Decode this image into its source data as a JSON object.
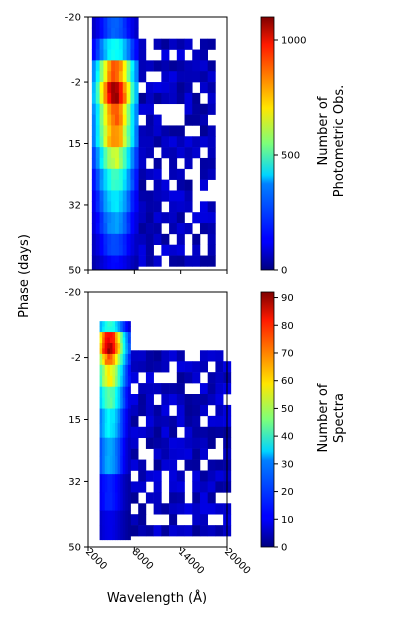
{
  "chart_data": [
    {
      "type": "heatmap",
      "title": "",
      "xlabel": "",
      "ylabel": "Phase (days)",
      "xlim": [
        2000,
        20000
      ],
      "ylim": [
        -20,
        50
      ],
      "y_inverted": true,
      "xticks": [
        2000,
        8000,
        14000,
        20000
      ],
      "xtick_labels_shown": false,
      "yticks": [
        -20,
        -2,
        15,
        32,
        50
      ],
      "ytick_labels": [
        "-20",
        "-2",
        "15",
        "32",
        "50"
      ],
      "colormap": "jet",
      "colorbar": {
        "label": "Number of\nPhotometric Obs.",
        "range": [
          0,
          1100
        ],
        "ticks": [
          0,
          500,
          1000
        ],
        "tick_labels": [
          "0",
          "500",
          "1000"
        ]
      },
      "description_of_distribution": "Dense band between ~2500 and ~8500 A peaking near 5500 A at phase ~-2 days (~1100 obs); sparse low-count cells out to ~18500 A between phases ~-14 and ~47 days.",
      "cells": [
        {
          "x0": 2500,
          "x1": 8500,
          "y0": -20,
          "y1": -14,
          "peak": 250
        },
        {
          "x0": 2500,
          "x1": 8500,
          "y0": -14,
          "y1": -8,
          "peak": 450
        },
        {
          "x0": 2500,
          "x1": 8500,
          "y0": -8,
          "y1": -2,
          "peak": 900
        },
        {
          "x0": 2500,
          "x1": 8500,
          "y0": -2,
          "y1": 4,
          "peak": 1100
        },
        {
          "x0": 2500,
          "x1": 8500,
          "y0": 4,
          "y1": 10,
          "peak": 900
        },
        {
          "x0": 2500,
          "x1": 8500,
          "y0": 10,
          "y1": 16,
          "peak": 850
        },
        {
          "x0": 2500,
          "x1": 8500,
          "y0": 16,
          "y1": 22,
          "peak": 650
        },
        {
          "x0": 2500,
          "x1": 8500,
          "y0": 22,
          "y1": 28,
          "peak": 500
        },
        {
          "x0": 2500,
          "x1": 8500,
          "y0": 28,
          "y1": 34,
          "peak": 400
        },
        {
          "x0": 2500,
          "x1": 8500,
          "y0": 34,
          "y1": 40,
          "peak": 320
        },
        {
          "x0": 2500,
          "x1": 8500,
          "y0": 40,
          "y1": 46,
          "peak": 230
        },
        {
          "x0": 2500,
          "x1": 8500,
          "y0": 46,
          "y1": 50,
          "peak": 150
        }
      ]
    },
    {
      "type": "heatmap",
      "title": "",
      "xlabel": "Wavelength (Å)",
      "ylabel": "Phase (days)",
      "xlim": [
        2000,
        20000
      ],
      "ylim": [
        -20,
        50
      ],
      "y_inverted": true,
      "xticks": [
        2000,
        8000,
        14000,
        20000
      ],
      "xtick_labels": [
        "2000",
        "8000",
        "14000",
        "20000"
      ],
      "yticks": [
        -20,
        -2,
        15,
        32,
        50
      ],
      "ytick_labels": [
        "-20",
        "-2",
        "15",
        "32",
        "50"
      ],
      "colormap": "jet",
      "colorbar": {
        "label": "Number of\nSpectra",
        "range": [
          0,
          92
        ],
        "ticks": [
          0,
          10,
          20,
          30,
          40,
          50,
          60,
          70,
          80,
          90
        ],
        "tick_labels": [
          "0",
          "10",
          "20",
          "30",
          "40",
          "50",
          "60",
          "70",
          "80",
          "90"
        ]
      },
      "description_of_distribution": "Dense region between ~3500 and ~7500 A peaking near 4500 A at phase ~-6 to -2 days (~90 spectra); low counts extend out to ~20000 A between phases ~-5 and ~45 days.",
      "cells": [
        {
          "x0": 3500,
          "x1": 7500,
          "y0": -12,
          "y1": -9,
          "peak": 40
        },
        {
          "x0": 3500,
          "x1": 7500,
          "y0": -9,
          "y1": -6,
          "peak": 85
        },
        {
          "x0": 3500,
          "x1": 7500,
          "y0": -6,
          "y1": -3,
          "peak": 92
        },
        {
          "x0": 3500,
          "x1": 7500,
          "y0": -3,
          "y1": 0,
          "peak": 75
        },
        {
          "x0": 3500,
          "x1": 7500,
          "y0": 0,
          "y1": 6,
          "peak": 60
        },
        {
          "x0": 3500,
          "x1": 7500,
          "y0": 6,
          "y1": 12,
          "peak": 45
        },
        {
          "x0": 3500,
          "x1": 7500,
          "y0": 12,
          "y1": 20,
          "peak": 35
        },
        {
          "x0": 3500,
          "x1": 7500,
          "y0": 20,
          "y1": 30,
          "peak": 28
        },
        {
          "x0": 3500,
          "x1": 7500,
          "y0": 30,
          "y1": 40,
          "peak": 15
        },
        {
          "x0": 3500,
          "x1": 7500,
          "y0": 40,
          "y1": 48,
          "peak": 10
        }
      ]
    }
  ],
  "shared_ylabel": "Phase (days)",
  "colors": {
    "background": "#ffffff",
    "axis": "#000000"
  }
}
